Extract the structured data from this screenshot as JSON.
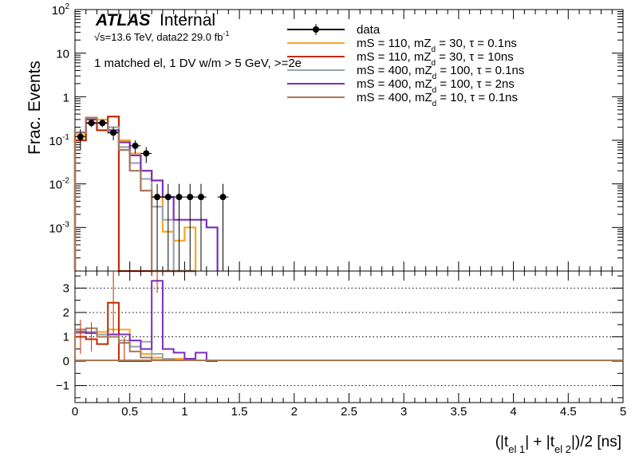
{
  "chart_data": [
    {
      "type": "line",
      "panel": "main",
      "ylabel": "Frac. Events",
      "yscale": "log",
      "ylim": [
        0.0001,
        100
      ],
      "xlim": [
        0,
        5
      ],
      "y_ticks": [
        {
          "value": 0.001,
          "base": "10",
          "exp": "-3"
        },
        {
          "value": 0.01,
          "base": "10",
          "exp": "-2"
        },
        {
          "value": 0.1,
          "base": "10",
          "exp": "-1"
        },
        {
          "value": 1,
          "base": "1",
          "exp": ""
        },
        {
          "value": 10,
          "base": "10",
          "exp": ""
        },
        {
          "value": 100,
          "base": "10",
          "exp": "2"
        }
      ],
      "annotations": {
        "atlas": "ATLAS",
        "internal": "Internal",
        "energy_line": "√s=13.6 TeV, data22 29.0 fb",
        "energy_sup": "-1",
        "selection": "1 matched el, 1 DV w/m > 5 GeV, >=2e"
      },
      "legend": {
        "placement": "top-right",
        "entries": [
          {
            "label": "data",
            "color": "#000000",
            "marker": true
          },
          {
            "label_a": "mS = 110, mZ",
            "sub": "d",
            "label_b": " = 30, τ = 0.1ns",
            "color": "#f5a623"
          },
          {
            "label_a": "mS = 110, mZ",
            "sub": "d",
            "label_b": " = 30, τ = 10ns",
            "color": "#c02a00"
          },
          {
            "label_a": "mS = 400, mZ",
            "sub": "d",
            "label_b": " = 100, τ = 0.1ns",
            "color": "#9aa5ae"
          },
          {
            "label_a": "mS = 400, mZ",
            "sub": "d",
            "label_b": " = 100, τ = 2ns",
            "color": "#7b2fbe"
          },
          {
            "label_a": "mS = 400, mZ",
            "sub": "d",
            "label_b": " = 10, τ = 0.1ns",
            "color": "#a87757"
          }
        ]
      },
      "bin_width": 0.1,
      "data_points": [
        {
          "x": 0.05,
          "y": 0.12,
          "err": 0.06
        },
        {
          "x": 0.15,
          "y": 0.25,
          "err": 0.05
        },
        {
          "x": 0.25,
          "y": 0.25,
          "err": 0.05
        },
        {
          "x": 0.35,
          "y": 0.15,
          "err": 0.05
        },
        {
          "x": 0.55,
          "y": 0.075,
          "err": 0.025
        },
        {
          "x": 0.65,
          "y": 0.05,
          "err": 0.02
        },
        {
          "x": 0.75,
          "y": 0.005,
          "err": 0.005
        },
        {
          "x": 0.85,
          "y": 0.005,
          "err": 0.005
        },
        {
          "x": 0.95,
          "y": 0.005,
          "err": 0.005
        },
        {
          "x": 1.05,
          "y": 0.005,
          "err": 0.005
        },
        {
          "x": 1.15,
          "y": 0.005,
          "err": 0.005
        },
        {
          "x": 1.35,
          "y": 0.005,
          "err": 0.005
        }
      ],
      "series": [
        {
          "name": "mS = 110, mZd = 30, τ = 0.1ns",
          "color": "#f5a623",
          "start": 0.0,
          "values": [
            0.13,
            0.3,
            0.3,
            0.2,
            0.1,
            0.05,
            0.02,
            0.005,
            0.0008,
            0.0005,
            0.001
          ]
        },
        {
          "name": "mS = 110, mZd = 30, τ = 10ns",
          "color": "#c02a00",
          "start": 0.0,
          "values": [
            0.1,
            0.25,
            0.17,
            0.35,
            0.0001,
            0.0001,
            0.0001,
            0.0001,
            0.0001,
            0.0001,
            0.0001
          ]
        },
        {
          "name": "mS = 400, mZd = 100, τ = 0.1ns",
          "color": "#9aa5ae",
          "start": 0.0,
          "values": [
            0.15,
            0.3,
            0.25,
            0.2,
            0.07,
            0.03,
            0.013,
            0.003,
            0.0015,
            0.0001,
            0.0001
          ]
        },
        {
          "name": "mS = 400, mZd = 100, τ = 2ns",
          "color": "#7b2fbe",
          "start": 0.0,
          "values": [
            0.15,
            0.3,
            0.25,
            0.17,
            0.09,
            0.045,
            0.02,
            0.012,
            0.005,
            0.0015,
            0.0015,
            0.0015,
            0.001
          ]
        },
        {
          "name": "mS = 400, mZd = 10, τ = 0.1ns",
          "color": "#a87757",
          "start": 0.0,
          "values": [
            0.15,
            0.33,
            0.25,
            0.15,
            0.06,
            0.02,
            0.007,
            0.0001,
            0.0001,
            0.0001,
            0.0001
          ]
        }
      ]
    },
    {
      "type": "line",
      "panel": "ratio",
      "ylim": [
        -1.7,
        3.7
      ],
      "xlim": [
        0,
        5
      ],
      "xlabel_parts": {
        "a": "(|t",
        "s1": "el 1",
        "b": "| + |t",
        "s2": "el 2",
        "c": "|)/2 [ns]"
      },
      "x_ticks": [
        {
          "value": 0,
          "label": "0"
        },
        {
          "value": 0.5,
          "label": "0.5"
        },
        {
          "value": 1,
          "label": "1"
        },
        {
          "value": 1.5,
          "label": "1.5"
        },
        {
          "value": 2,
          "label": "2"
        },
        {
          "value": 2.5,
          "label": "2.5"
        },
        {
          "value": 3,
          "label": "3"
        },
        {
          "value": 3.5,
          "label": "3.5"
        },
        {
          "value": 4,
          "label": "4"
        },
        {
          "value": 4.5,
          "label": "4.5"
        },
        {
          "value": 5,
          "label": "5"
        }
      ],
      "y_ticks": [
        {
          "value": -1,
          "label": "−1"
        },
        {
          "value": 0,
          "label": "0"
        },
        {
          "value": 1,
          "label": "1"
        },
        {
          "value": 2,
          "label": "2"
        },
        {
          "value": 3,
          "label": "3"
        }
      ],
      "grid_y": [
        -1,
        1,
        2,
        3
      ],
      "series": [
        {
          "color": "#f5a623",
          "start": 0.0,
          "values": [
            1.15,
            1.2,
            1.2,
            1.3,
            1.3,
            0.6,
            0.3,
            0.15,
            0.1,
            0.1
          ]
        },
        {
          "color": "#c02a00",
          "start": 0.0,
          "values": [
            1.0,
            0.9,
            0.7,
            2.4,
            0.0,
            0.0,
            0.0
          ]
        },
        {
          "color": "#9aa5ae",
          "start": 0.0,
          "values": [
            1.3,
            1.2,
            1.1,
            1.1,
            0.85,
            0.6,
            0.8,
            0.3,
            0.1
          ]
        },
        {
          "color": "#7b2fbe",
          "start": 0.0,
          "values": [
            1.2,
            1.15,
            1.0,
            1.1,
            1.1,
            0.85,
            0.5,
            3.3,
            0.5,
            0.35,
            0.1,
            0.35,
            0.0
          ]
        },
        {
          "color": "#a87757",
          "start": 0.0,
          "values": [
            1.3,
            1.35,
            1.0,
            1.0,
            0.75,
            0.4,
            0.15,
            0.05,
            0.05
          ]
        }
      ]
    }
  ]
}
